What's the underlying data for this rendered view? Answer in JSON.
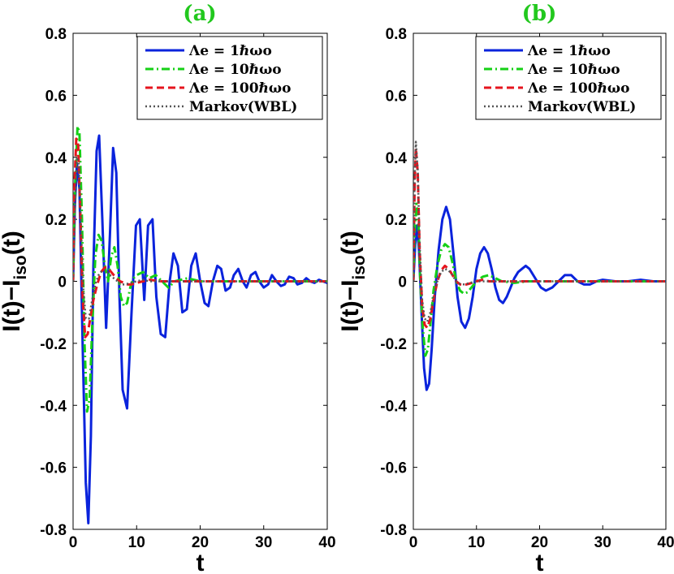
{
  "colors": {
    "series": [
      "#0a23dc",
      "#16d016",
      "#e6141e",
      "#555555"
    ],
    "panel_label": "#22c81e"
  },
  "chart_data": [
    {
      "type": "line",
      "panel_label": "(a)",
      "xlabel": "t",
      "ylabel": "I(t)−I_iso(t)",
      "ylabel_main": "I(t)−I",
      "ylabel_sub": "iso",
      "ylabel_tail": "(t)",
      "xlim": [
        0,
        40
      ],
      "ylim": [
        -0.8,
        0.8
      ],
      "x_ticks": [
        "0",
        "10",
        "20",
        "30",
        "40"
      ],
      "y_ticks": [
        "-0.8",
        "-0.6",
        "-0.4",
        "-0.2",
        "0",
        "0.2",
        "0.4",
        "0.6",
        "0.8"
      ],
      "legend_position": "top-right",
      "series": [
        {
          "name": "Λe = 1ℏωo",
          "style": "solid",
          "x": [
            0,
            0.3,
            0.6,
            1.0,
            1.5,
            2.0,
            2.4,
            2.8,
            3.2,
            3.7,
            4.1,
            4.6,
            5.2,
            5.8,
            6.3,
            6.8,
            7.3,
            7.8,
            8.5,
            9.2,
            9.9,
            10.5,
            11.2,
            11.8,
            12.5,
            13.1,
            13.8,
            14.5,
            15.2,
            15.8,
            16.5,
            17.2,
            17.9,
            18.6,
            19.3,
            20.0,
            20.7,
            21.3,
            22.0,
            22.7,
            23.3,
            24.0,
            24.7,
            25.3,
            26.0,
            26.7,
            27.3,
            28.0,
            28.7,
            29.3,
            30.0,
            30.7,
            31.3,
            32.0,
            32.7,
            33.3,
            34.0,
            34.7,
            35.3,
            36.0,
            36.7,
            37.3,
            38.0,
            38.7,
            39.3,
            40.0
          ],
          "y": [
            0,
            0.25,
            0.38,
            0.3,
            -0.2,
            -0.65,
            -0.78,
            -0.5,
            0.05,
            0.42,
            0.47,
            0.2,
            -0.15,
            0.15,
            0.43,
            0.35,
            -0.05,
            -0.35,
            -0.41,
            -0.1,
            0.18,
            0.2,
            -0.06,
            0.18,
            0.2,
            -0.05,
            -0.17,
            -0.18,
            0.0,
            0.09,
            0.05,
            -0.1,
            -0.09,
            0.05,
            0.09,
            0.0,
            -0.07,
            -0.08,
            0.0,
            0.05,
            0.04,
            -0.03,
            -0.02,
            0.02,
            0.04,
            0.0,
            -0.02,
            0.02,
            0.03,
            0.0,
            -0.02,
            -0.01,
            0.02,
            0.0,
            -0.015,
            -0.01,
            0.015,
            0.01,
            -0.01,
            -0.005,
            0.01,
            0.0,
            -0.005,
            0.005,
            0.0,
            -0.005
          ]
        },
        {
          "name": "Λe = 10ℏωo",
          "style": "dashdot",
          "x": [
            0,
            0.3,
            0.7,
            1.0,
            1.4,
            1.8,
            2.2,
            2.6,
            3.0,
            3.5,
            4.0,
            4.5,
            5.0,
            5.5,
            6.0,
            6.5,
            7.0,
            7.5,
            8.0,
            8.5,
            9.0,
            9.5,
            10.0,
            11.0,
            12.0,
            13.0,
            14.0,
            15.0,
            16.0,
            18.0,
            20.0,
            25.0,
            30.0,
            35.0,
            40.0
          ],
          "y": [
            0,
            0.3,
            0.5,
            0.48,
            0.2,
            -0.2,
            -0.42,
            -0.38,
            -0.15,
            0.08,
            0.15,
            0.13,
            0.05,
            0.0,
            0.08,
            0.11,
            0.05,
            -0.05,
            -0.08,
            -0.07,
            -0.02,
            0.01,
            0.02,
            0.03,
            0.01,
            0.02,
            0.0,
            -0.02,
            0.0,
            0.01,
            0.0,
            0.0,
            0.0,
            0.0,
            0.0
          ]
        },
        {
          "name": "Λe = 100ℏωo",
          "style": "dashed",
          "x": [
            0,
            0.2,
            0.5,
            0.8,
            1.1,
            1.5,
            1.9,
            2.3,
            2.7,
            3.2,
            3.8,
            4.4,
            5.0,
            5.6,
            6.2,
            6.8,
            7.4,
            8.0,
            8.6,
            9.2,
            10.0,
            11.0,
            12.0,
            14.0,
            16.0,
            20.0,
            25.0,
            30.0,
            35.0,
            40.0
          ],
          "y": [
            0,
            0.3,
            0.46,
            0.44,
            0.25,
            -0.05,
            -0.18,
            -0.17,
            -0.12,
            -0.06,
            -0.01,
            0.03,
            0.045,
            0.04,
            0.025,
            0.01,
            0.0,
            -0.005,
            -0.01,
            -0.01,
            -0.005,
            0.0,
            0.005,
            0.0,
            0.0,
            0.0,
            0.0,
            0.0,
            0.0,
            0.0
          ]
        },
        {
          "name": "Markov(WBL)",
          "style": "dotted",
          "x": [
            0,
            0.3,
            0.6,
            0.9,
            1.2,
            1.6,
            2.0,
            2.5,
            3.0,
            3.5,
            4.0,
            4.6,
            5.2,
            5.8,
            6.4,
            7.0,
            7.6,
            8.2,
            9.0,
            10.0,
            11.0,
            12.0,
            14.0,
            16.0,
            20.0,
            25.0,
            30.0,
            35.0,
            40.0
          ],
          "y": [
            0,
            0.25,
            0.4,
            0.38,
            0.2,
            -0.02,
            -0.12,
            -0.12,
            -0.06,
            -0.01,
            0.02,
            0.035,
            0.035,
            0.02,
            0.01,
            0.0,
            -0.01,
            -0.01,
            -0.005,
            0.0,
            0.005,
            0.0,
            0.0,
            0.0,
            0.0,
            0.0,
            0.0,
            0.0,
            0.0
          ]
        }
      ]
    },
    {
      "type": "line",
      "panel_label": "(b)",
      "xlabel": "t",
      "ylabel": "I(t)−I_iso(t)",
      "ylabel_main": "I(t)−I",
      "ylabel_sub": "iso",
      "ylabel_tail": "(t)",
      "xlim": [
        0,
        40
      ],
      "ylim": [
        -0.8,
        0.8
      ],
      "x_ticks": [
        "0",
        "10",
        "20",
        "30",
        "40"
      ],
      "y_ticks": [
        "-0.8",
        "-0.6",
        "-0.4",
        "-0.2",
        "0",
        "0.2",
        "0.4",
        "0.6",
        "0.8"
      ],
      "legend_position": "top-right",
      "series": [
        {
          "name": "Λe = 1ℏωo",
          "style": "solid",
          "x": [
            0,
            0.3,
            0.6,
            0.9,
            1.3,
            1.7,
            2.1,
            2.5,
            2.9,
            3.4,
            4.0,
            4.6,
            5.2,
            5.8,
            6.4,
            7.0,
            7.6,
            8.2,
            8.8,
            9.4,
            10.0,
            10.6,
            11.2,
            11.8,
            12.4,
            13.0,
            13.6,
            14.2,
            14.8,
            15.4,
            16.0,
            16.6,
            17.2,
            17.8,
            18.4,
            19.0,
            19.6,
            20.2,
            21.0,
            22.0,
            23.0,
            24.0,
            25.0,
            26.0,
            27.0,
            28.0,
            29.0,
            30.0,
            32.0,
            34.0,
            36.0,
            38.0,
            40.0
          ],
          "y": [
            0,
            0.12,
            0.18,
            0.1,
            -0.1,
            -0.28,
            -0.35,
            -0.33,
            -0.22,
            -0.05,
            0.1,
            0.2,
            0.24,
            0.2,
            0.08,
            -0.05,
            -0.13,
            -0.15,
            -0.12,
            -0.05,
            0.04,
            0.09,
            0.11,
            0.09,
            0.04,
            -0.02,
            -0.06,
            -0.07,
            -0.05,
            -0.02,
            0.01,
            0.03,
            0.04,
            0.05,
            0.04,
            0.02,
            0.0,
            -0.02,
            -0.03,
            -0.02,
            0.0,
            0.02,
            0.02,
            0.0,
            -0.01,
            -0.01,
            0.0,
            0.005,
            0.0,
            0.0,
            0.005,
            0.0,
            0.0
          ]
        },
        {
          "name": "Λe = 10ℏωo",
          "style": "dashdot",
          "x": [
            0,
            0.2,
            0.5,
            0.8,
            1.1,
            1.5,
            1.9,
            2.3,
            2.7,
            3.2,
            3.8,
            4.4,
            5.0,
            5.6,
            6.2,
            6.8,
            7.4,
            8.0,
            8.6,
            9.2,
            10.0,
            11.0,
            12.0,
            13.0,
            14.0,
            16.0,
            18.0,
            20.0,
            25.0,
            30.0,
            35.0,
            40.0
          ],
          "y": [
            0,
            0.15,
            0.25,
            0.2,
            0.0,
            -0.15,
            -0.24,
            -0.22,
            -0.14,
            -0.03,
            0.05,
            0.1,
            0.12,
            0.11,
            0.06,
            0.0,
            -0.03,
            -0.04,
            -0.035,
            -0.02,
            0.0,
            0.015,
            0.02,
            0.01,
            0.0,
            -0.005,
            0.0,
            0.0,
            0.0,
            0.0,
            0.0,
            0.0
          ]
        },
        {
          "name": "Λe = 100ℏωo",
          "style": "dashed",
          "x": [
            0,
            0.2,
            0.4,
            0.7,
            1.0,
            1.4,
            1.8,
            2.2,
            2.7,
            3.2,
            3.8,
            4.4,
            5.0,
            5.6,
            6.2,
            6.8,
            7.4,
            8.0,
            8.8,
            10.0,
            11.0,
            12.0,
            14.0,
            16.0,
            20.0,
            25.0,
            30.0,
            35.0,
            40.0
          ],
          "y": [
            0,
            0.3,
            0.43,
            0.35,
            0.1,
            -0.08,
            -0.14,
            -0.15,
            -0.12,
            -0.06,
            0.0,
            0.035,
            0.05,
            0.04,
            0.02,
            0.0,
            -0.01,
            -0.012,
            -0.008,
            0.0,
            0.005,
            0.0,
            0.0,
            0.0,
            0.0,
            0.0,
            0.0,
            0.0,
            0.0
          ]
        },
        {
          "name": "Markov(WBL)",
          "style": "dotted",
          "x": [
            0,
            0.2,
            0.4,
            0.7,
            1.0,
            1.4,
            1.8,
            2.2,
            2.7,
            3.2,
            3.8,
            4.4,
            5.0,
            5.6,
            6.2,
            6.8,
            7.4,
            8.0,
            8.8,
            10.0,
            12.0,
            14.0,
            16.0,
            20.0,
            25.0,
            30.0,
            35.0,
            40.0
          ],
          "y": [
            0,
            0.32,
            0.45,
            0.36,
            0.12,
            -0.06,
            -0.12,
            -0.13,
            -0.1,
            -0.05,
            0.0,
            0.03,
            0.04,
            0.035,
            0.02,
            0.0,
            -0.008,
            -0.01,
            -0.006,
            0.0,
            0.0,
            0.0,
            0.0,
            0.0,
            0.0,
            0.0,
            0.0,
            0.0
          ]
        }
      ]
    }
  ]
}
